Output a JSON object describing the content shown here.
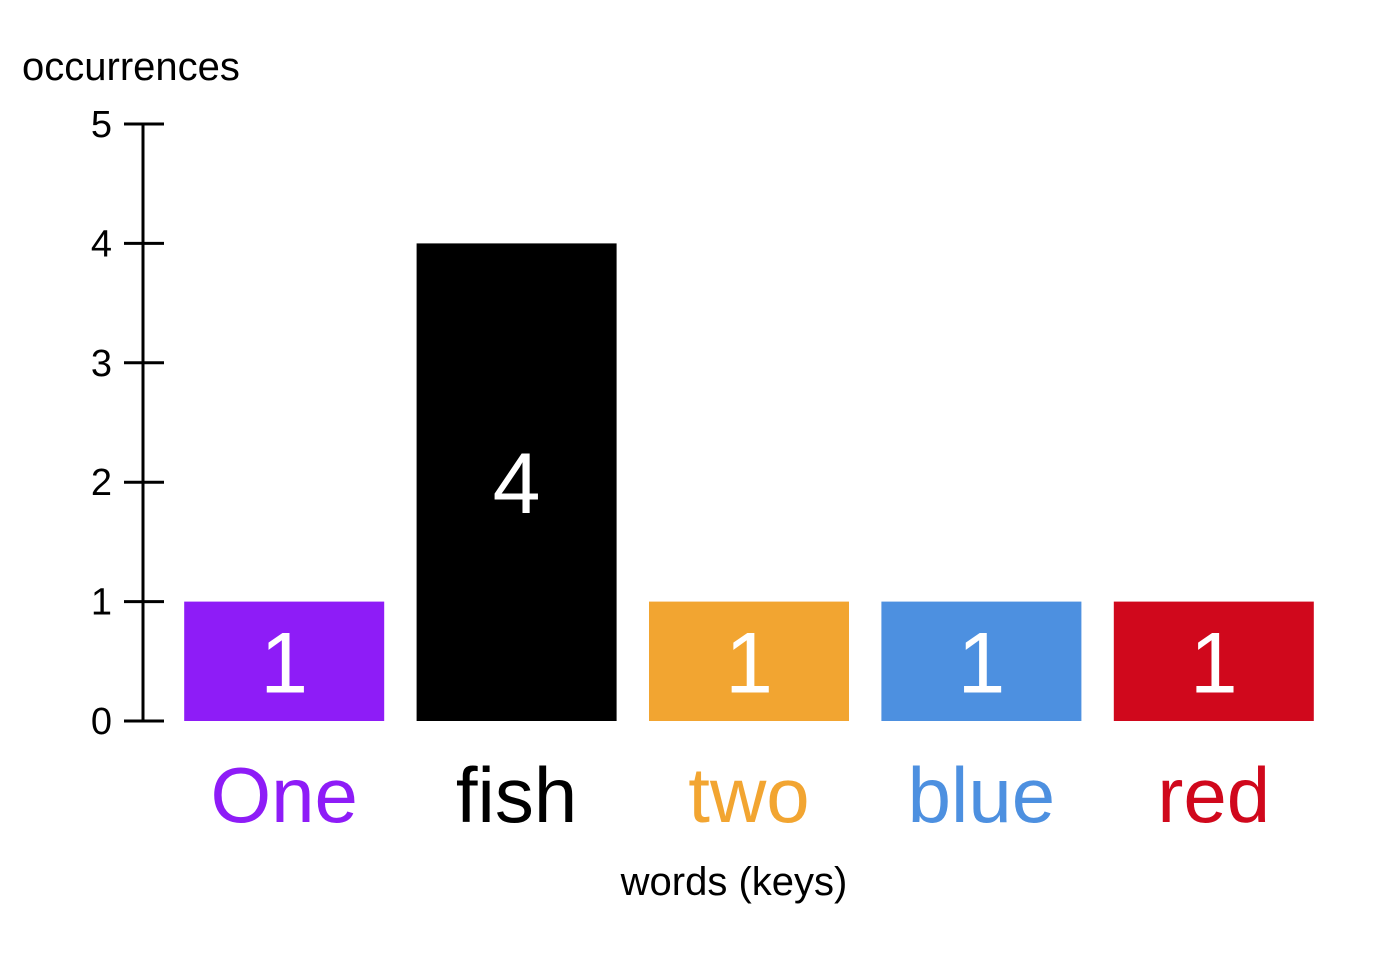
{
  "chart_data": {
    "type": "bar",
    "categories": [
      "One",
      "fish",
      "two",
      "blue",
      "red"
    ],
    "values": [
      1,
      4,
      1,
      1,
      1
    ],
    "data_labels": [
      "1",
      "4",
      "1",
      "1",
      "1"
    ],
    "colors": [
      "#8e1cf7",
      "#000000",
      "#f2a531",
      "#4d90e0",
      "#d0081c"
    ],
    "title": "",
    "xlabel": "words (keys)",
    "ylabel": "occurrences",
    "ylim": [
      0,
      5
    ],
    "yticks": [
      0,
      1,
      2,
      3,
      4,
      5
    ],
    "grid": false,
    "legend": "none"
  }
}
